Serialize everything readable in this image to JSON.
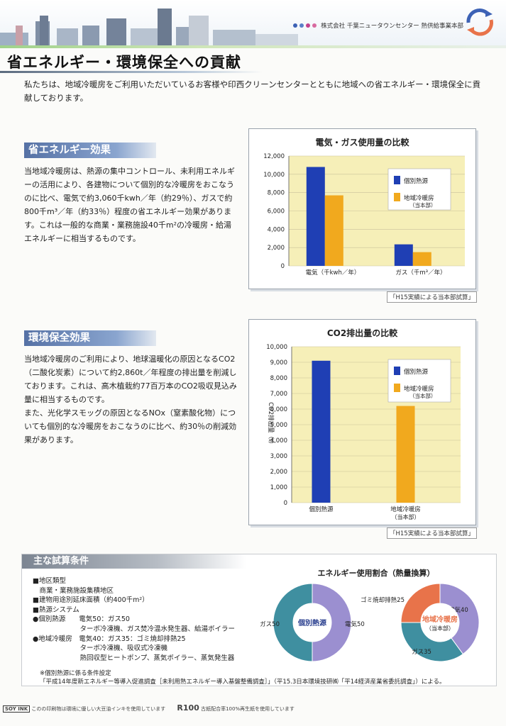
{
  "header": {
    "company": "株式会社 千葉ニュータウンセンター 熱供給事業本部",
    "dot_colors": [
      "#3d62b5",
      "#5b7fc8",
      "#c4408c",
      "#d86aa0"
    ]
  },
  "page_title": "省エネルギー・環境保全への貢献",
  "intro": "私たちは、地域冷暖房をご利用いただいているお客様や印西クリーンセンターとともに地域への省エネルギー・環境保全に貢献しております。",
  "section1": {
    "heading": "省エネルギー効果",
    "body": "当地域冷暖房は、熱源の集中コントロール、未利用エネルギーの活用により、各建物について個別的な冷暖房をおこなうのに比べ、電気で約3,060千kwh／年（約29％）、ガスで約800千m³／年（約33％）程度の省エネルギー効果があります。これは一般的な商業・業務施設40千m²の冷暖房・給湯エネルギーに相当するものです。"
  },
  "section2": {
    "heading": "環境保全効果",
    "body1": "当地域冷暖房のご利用により、地球温暖化の原因となるCO2（二酸化炭素）について約2,860t／年程度の排出量を削減しております。これは、高木植栽約77百万本のCO2吸収見込み量に相当するものです。",
    "body2": "また、光化学スモッグの原因となるNOx（窒素酸化物）についても個別的な冷暖房をおこなうのに比べ、約30％の削減効果があります。"
  },
  "chart_data": [
    {
      "type": "bar",
      "title": "電気・ガス使用量の比較",
      "categories": [
        "電気（千kwh／年）",
        "ガス（千m³／年）"
      ],
      "series": [
        {
          "name": "個別熱源",
          "values": [
            10800,
            2350
          ],
          "color": "#1f3fb4"
        },
        {
          "name": "地域冷暖房",
          "sub": "（当本部）",
          "values": [
            7700,
            1500
          ],
          "color": "#f1a91e"
        }
      ],
      "ylim": [
        0,
        12000
      ],
      "yticks": [
        "0",
        "2,000",
        "4,000",
        "6,000",
        "8,000",
        "10,000",
        "12,000"
      ],
      "ylabel": "",
      "plot_bg": "#f6efb8",
      "legend": "right",
      "note": "「H15実績による当本部試算」"
    },
    {
      "type": "bar",
      "title": "CO2排出量の比較",
      "categories": [
        "個別熱源",
        "地域冷暖房"
      ],
      "category_sub": [
        "",
        "（当本部）"
      ],
      "series": [
        {
          "name": "個別熱源",
          "values": [
            9100,
            null
          ],
          "color": "#1f3fb4"
        },
        {
          "name": "地域冷暖房",
          "sub": "（当本部）",
          "values": [
            null,
            6200
          ],
          "color": "#f1a91e"
        }
      ],
      "ylim": [
        0,
        10000
      ],
      "yticks": [
        "0",
        "1,000",
        "2,000",
        "3,000",
        "4,000",
        "5,000",
        "6,000",
        "7,000",
        "8,000",
        "9,000",
        "10,000"
      ],
      "ylabel": "CO2排出量（t）",
      "plot_bg": "#f6efb8",
      "legend": "right",
      "note": "「H15実績による当本部試算」"
    },
    {
      "type": "pie",
      "title": "エネルギー使用割合（熱量換算）",
      "center_label": "個別熱源",
      "slices": [
        {
          "label": "電気50",
          "value": 50,
          "color": "#9b8fd0"
        },
        {
          "label": "ガス50",
          "value": 50,
          "color": "#3f8fa0"
        }
      ]
    },
    {
      "type": "pie",
      "center_label": "地域冷暖房",
      "center_sub": "（当本部）",
      "slices": [
        {
          "label": "電気40",
          "value": 40,
          "color": "#9b8fd0"
        },
        {
          "label": "ガス35",
          "value": 35,
          "color": "#3f8fa0"
        },
        {
          "label": "ゴミ焼却排熱25",
          "value": 25,
          "color": "#e8734a"
        }
      ]
    }
  ],
  "conditions": {
    "heading": "主な試算条件",
    "lines": [
      "■地区類型",
      "　商業・業務施設集積地区",
      "■建物用途別延床面積（約400千m²）",
      "■熱源システム",
      "●個別熱源　　電気50：ガス50",
      "　　　　　　　ターボ冷凍機、ガス焚冷温水発生器、給湯ボイラー",
      "●地域冷暖房　電気40：ガス35：ゴミ焼却排熱25",
      "　　　　　　　ターボ冷凍機、吸収式冷凍機",
      "　　　　　　　熱回収型ヒートポンプ、蒸気ボイラー、蒸気発生器"
    ],
    "bullet_colors": [
      "#1f3fb4",
      "#f1a91e"
    ],
    "footnote_title": "※個別熱源に係る条件設定",
    "footnote": "「平成14年度新エネルギー等導入促進調査［未利用熱エネルギー導入基盤整備調査］」（平15.3日本環境技研㈱「平14経済産業省委託調査」）による。"
  },
  "footer": {
    "soy": "SOY INK",
    "soy_text": "このの印刷物は環境に優しい大豆油インキを使用しています",
    "r100": "R100",
    "r100_text": "古紙配合率100%再生紙を使用しています"
  }
}
